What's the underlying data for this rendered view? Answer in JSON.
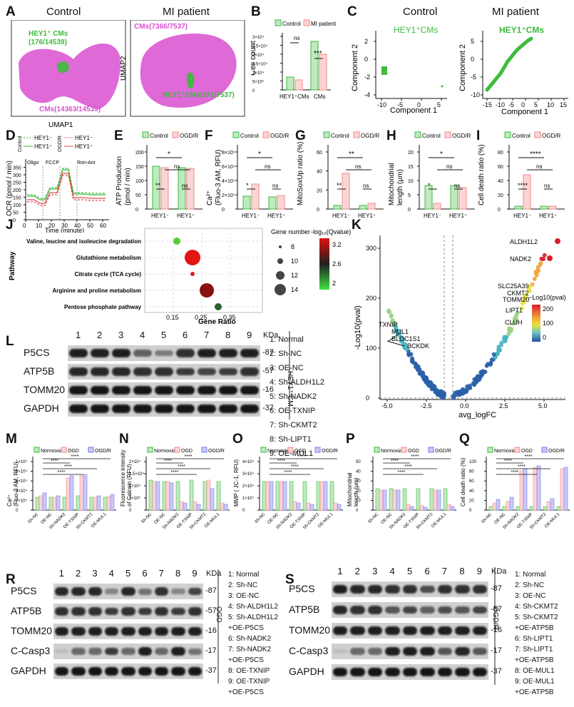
{
  "panelA": {
    "letter": "A",
    "control_title": "Control",
    "mi_title": "MI patient",
    "control_hey1": "HEY1⁺ CMs",
    "control_hey1_count": "(176/14539)",
    "control_cms": "CMs(14363/14539)",
    "mi_cms": "CMs(7366/7537)",
    "mi_hey1": "HEY1⁺CMs(171/7537)",
    "xlabel": "UMAP1",
    "ylabel": "UMAP2",
    "colors": {
      "cms": "#d94fd0",
      "hey1": "#3dbb3d"
    }
  },
  "panelB": {
    "letter": "B",
    "legend": [
      "Control",
      "MI patient"
    ],
    "ylabel": "Cell count",
    "yticks": [
      "0",
      "5×10³",
      "1×10⁴",
      "1.5×10⁴",
      "2×10⁴",
      "2.5×10⁴",
      "3×10⁴"
    ],
    "categories": [
      "HEY1⁺CMs",
      "CMs"
    ],
    "sig": [
      "ns",
      "***"
    ]
  },
  "panelC": {
    "letter": "C",
    "control_title": "Control",
    "mi_title": "MI patient",
    "label": "HEY1⁺CMs",
    "label2": "HEY1⁺CMs",
    "xlabel": "Component 1",
    "ylabel": "Component 2",
    "left_xticks": [
      "-10",
      "-5",
      "0",
      "5"
    ],
    "left_yticks": [
      "2",
      "0",
      "-2",
      "-4"
    ],
    "right_xticks": [
      "-15",
      "-10",
      "-5",
      "0",
      "5",
      "10",
      "15"
    ],
    "right_yticks": [
      "5",
      "0",
      "-5",
      "-10"
    ]
  },
  "panelD": {
    "letter": "D",
    "ylabel": "OCR (pmol / min)",
    "xlabel": "Time (minute)",
    "legend_left": "Control",
    "legend_right": "OGD/R",
    "series": [
      "HEY1⁻",
      "HEY1⁺",
      "HEY1⁻",
      "HEY1⁺"
    ],
    "treatments": [
      "Oligo",
      "FCCP",
      "Rot+Ant"
    ],
    "xticks": [
      "0",
      "10",
      "20",
      "30",
      "40",
      "50",
      "60"
    ],
    "yticks": [
      "0",
      "50",
      "100",
      "150",
      "200",
      "250",
      "300",
      "350"
    ]
  },
  "smallBars": {
    "E": {
      "letter": "E",
      "ylabel1": "ATP Production",
      "ylabel2": "(pmol / min)",
      "yticks": [
        "0",
        "50",
        "100",
        "150",
        "200"
      ],
      "sig": [
        "**",
        "ns",
        "ns",
        "*"
      ]
    },
    "F": {
      "letter": "F",
      "ylabel1": "Ca²⁺",
      "ylabel2": "(Fluo-3 AM, RFU)",
      "yticks": [
        "0",
        "2×10⁵",
        "4×10⁵",
        "6×10⁵",
        "8×10⁵"
      ],
      "sig": [
        "*",
        "ns",
        "ns",
        "*"
      ]
    },
    "G": {
      "letter": "G",
      "ylabel1": "MitoSoxUp ratio (%)",
      "ylabel2": "",
      "yticks": [
        "0",
        "20",
        "40",
        "60"
      ],
      "sig": [
        "**",
        "ns",
        "ns",
        "**"
      ]
    },
    "H": {
      "letter": "H",
      "ylabel1": "Mitochondrial",
      "ylabel2": "length (μm)",
      "yticks": [
        "0",
        "5",
        "10",
        "15",
        "20"
      ],
      "sig": [
        "*",
        "ns",
        "ns",
        "*"
      ]
    },
    "I": {
      "letter": "I",
      "ylabel1": "Cell death ratio (%)",
      "ylabel2": "",
      "yticks": [
        "0",
        "20",
        "40",
        "60",
        "80"
      ],
      "sig": [
        "****",
        "ns",
        "ns",
        "****"
      ]
    },
    "legend": [
      "Control",
      "OGD/R"
    ],
    "categories": [
      "HEY1⁻",
      "HEY1⁺"
    ]
  },
  "panelJ": {
    "letter": "J",
    "ylabel": "Pathway",
    "xlabel": "Gene Ratio",
    "xticks": [
      "0.15",
      "0.25",
      "0.35"
    ],
    "pathways": [
      "Valine, leucine and isoleucine degradation",
      "Glutathione metabolism",
      "Citrate cycle (TCA cycle)",
      "Arginine and proline metabolism",
      "Pentose phosphate pathway"
    ],
    "size_legend_title": "Gene number",
    "size_values": [
      "8",
      "10",
      "12",
      "14"
    ],
    "color_legend_title": "-log₁₀(Qvalue)",
    "color_values": [
      "3.2",
      "2.6",
      "2"
    ]
  },
  "panelK": {
    "letter": "K",
    "xlabel": "avg_logFC",
    "ylabel": "-Log10(pval)",
    "xticks": [
      "-5.0",
      "-2.5",
      "0.0",
      "2.5",
      "5.0"
    ],
    "yticks": [
      "0",
      "100",
      "200",
      "300"
    ],
    "up_labels": [
      "ALDH1L2",
      "NADK2",
      "SLC25A39",
      "CKMT2",
      "TOMM20",
      "LIPT1",
      "CLUH"
    ],
    "down_labels": [
      "TXNIP",
      "MUL1",
      "BLOC1S1",
      "BCKDK"
    ],
    "legend_title": "−Log10(pval)",
    "legend_values": [
      "200",
      "100",
      "0"
    ]
  },
  "panelL": {
    "letter": "L",
    "lanes": [
      "1",
      "2",
      "3",
      "4",
      "5",
      "6",
      "7",
      "8",
      "9"
    ],
    "kda": "KDa",
    "proteins": [
      "P5CS",
      "ATP5B",
      "TOMM20",
      "GAPDH"
    ],
    "weights": [
      "-87",
      "-57",
      "-16",
      "-37"
    ],
    "side_label": "HEY1⁺ CM",
    "lane_legend": [
      "1: Normal",
      "2: Sh-NC",
      "3: OE-NC",
      "4: Sh-ALDH1L2",
      "5: Sh-NADK2",
      "6: OE-TXNIP",
      "7: Sh-CKMT2",
      "8: Sh-LIPT1",
      "9: OE-MUL1"
    ]
  },
  "bottomBars": {
    "legend": [
      "Normoxia",
      "OGD",
      "OGD/R"
    ],
    "categories": [
      "Sh-NC",
      "OE-NC",
      "Sh-NADK2",
      "OE-TXNIP",
      "Sh-CKMT2",
      "OE-MUL1"
    ],
    "sig": "****",
    "M": {
      "letter": "M",
      "ylabel1": "Ca²⁺",
      "ylabel2": "(Fluo-3 AM, RFU)",
      "yticks": [
        "0",
        "2×10⁴",
        "4×10⁴",
        "6×10⁴",
        "8×10⁴",
        "1×10⁵"
      ]
    },
    "N": {
      "letter": "N",
      "ylabel1": "Fluorescence intensity",
      "ylabel2": "of Calcein (RFU)",
      "yticks": [
        "0",
        "5×10³",
        "1×10⁴",
        "1.5×10⁴",
        "2×10⁴"
      ]
    },
    "O": {
      "letter": "O",
      "ylabel1": "MMP ( JC-1, RFU)",
      "ylabel2": "",
      "yticks": [
        "0",
        "1×10⁴",
        "2×10⁴",
        "3×10⁴",
        "4×10⁴"
      ]
    },
    "P": {
      "letter": "P",
      "ylabel1": "Mitochondrial",
      "ylabel2": "length (μm)",
      "yticks": [
        "0",
        "10",
        "20",
        "30",
        "40",
        "50"
      ]
    },
    "Q": {
      "letter": "Q",
      "ylabel1": "Cell death ratio (%)",
      "ylabel2": "",
      "yticks": [
        "0",
        "20",
        "40",
        "60",
        "80",
        "100"
      ]
    }
  },
  "panelR": {
    "letter": "R",
    "lanes": [
      "1",
      "2",
      "3",
      "4",
      "5",
      "6",
      "7",
      "8",
      "9"
    ],
    "kda": "KDa",
    "proteins": [
      "P5CS",
      "ATP5B",
      "TOMM20",
      "C-Casp3",
      "GAPDH"
    ],
    "weights": [
      "-87",
      "-57",
      "-16",
      "-17",
      "-37"
    ],
    "side_label": "OGD",
    "lane_legend": [
      "1: Normal",
      "2: Sh-NC",
      "3: OE-NC",
      "4: Sh-ALDH1L2",
      "5: Sh-ALDH1L2",
      "+OE-P5CS",
      "6: Sh-NADK2",
      "7: Sh-NADK2",
      "+OE-P5CS",
      "8: OE-TXNIP",
      "9: OE-TXNIP",
      "+OE-P5CS"
    ]
  },
  "panelS": {
    "letter": "S",
    "lanes": [
      "1",
      "2",
      "3",
      "4",
      "5",
      "6",
      "7",
      "8",
      "9"
    ],
    "kda": "KDa",
    "proteins": [
      "P5CS",
      "ATP5B",
      "TOMM20",
      "C-Casp3",
      "GAPDH"
    ],
    "weights": [
      "-87",
      "-57",
      "-16",
      "-17",
      "-37"
    ],
    "side_label": "OGD/R",
    "lane_legend": [
      "1: Normal",
      "2: Sh-NC",
      "3: OE-NC",
      "4: Sh-CKMT2",
      "5: Sh-CKMT2",
      "+OE-ATP5B",
      "6: Sh-LIPT1",
      "7: Sh-LIPT1",
      "+OE-ATP5B",
      "8: OE-MUL1",
      "9: OE-MUL1",
      "+OE-ATP5B"
    ]
  },
  "colors": {
    "green": "#3dbb3d",
    "red": "#f08a8a",
    "blue": "#7b7bf0",
    "magenta": "#d94fd0"
  }
}
